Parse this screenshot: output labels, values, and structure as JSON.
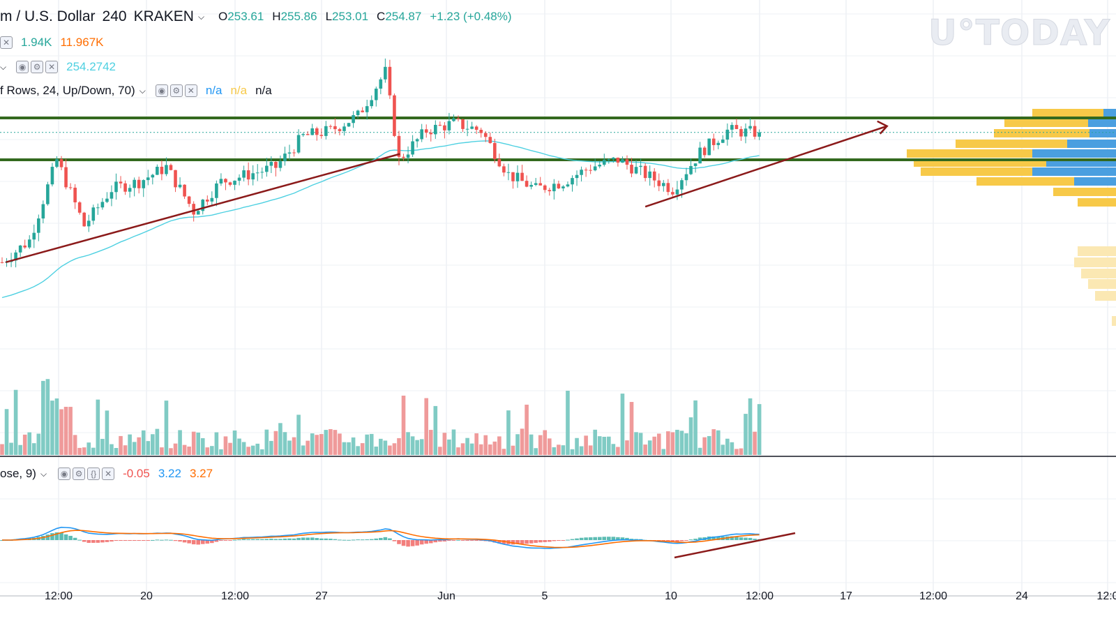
{
  "watermark": "U°TODAY",
  "header": {
    "symbol": "m / U.S. Dollar",
    "interval": "240",
    "exchange": "KRAKEN",
    "o_label": "O",
    "o": "253.61",
    "h_label": "H",
    "h": "255.86",
    "l_label": "L",
    "l": "253.01",
    "c_label": "C",
    "c": "254.87",
    "change": "+1.23 (+0.48%)"
  },
  "volume_legend": {
    "v1": "1.94K",
    "v2": "11.967K"
  },
  "ma_legend": {
    "value": "254.2742"
  },
  "vp_legend": {
    "label": "f Rows, 24, Up/Down, 70)",
    "v1": "n/a",
    "v2": "n/a",
    "v3": "n/a"
  },
  "macd_legend": {
    "label": "ose, 9)",
    "hist": "-0.05",
    "macd": "3.22",
    "signal": "3.27"
  },
  "colors": {
    "up": "#26a69a",
    "down": "#ef5350",
    "ma": "#4dd0e1",
    "macd": "#2196f3",
    "signal": "#ff6d00",
    "level": "#33691e",
    "trend": "#8b1a1a",
    "vp_up": "#f7c948",
    "vp_down": "#4a9fe0"
  },
  "x_axis": {
    "labels": [
      "12:00",
      "20",
      "12:00",
      "27",
      "Jun",
      "5",
      "10",
      "12:00",
      "17",
      "12:00",
      "24",
      "12:0"
    ]
  },
  "chart_data": {
    "type": "candlestick",
    "symbol": "m / U.S. Dollar",
    "exchange": "KRAKEN",
    "interval": "240",
    "price_range": [
      243,
      262
    ],
    "close_points": [
      [
        0,
        246
      ],
      [
        6,
        247.5
      ],
      [
        12,
        253
      ],
      [
        18,
        248.5
      ],
      [
        24,
        251
      ],
      [
        30,
        251.5
      ],
      [
        36,
        252.5
      ],
      [
        42,
        249.5
      ],
      [
        48,
        251.5
      ],
      [
        54,
        252
      ],
      [
        60,
        252.5
      ],
      [
        66,
        254.6
      ],
      [
        72,
        255
      ],
      [
        78,
        256
      ],
      [
        84,
        259
      ],
      [
        87,
        253
      ],
      [
        93,
        255
      ],
      [
        99,
        255.5
      ],
      [
        105,
        255
      ],
      [
        111,
        252
      ],
      [
        117,
        251
      ],
      [
        123,
        251.5
      ],
      [
        129,
        252.5
      ],
      [
        135,
        253
      ],
      [
        141,
        252
      ],
      [
        147,
        251
      ],
      [
        153,
        253.5
      ],
      [
        159,
        255
      ],
      [
        163,
        254.9
      ],
      [
        165,
        254.87
      ]
    ],
    "support_resistance": [
      255.86,
      253.0
    ],
    "trendlines": [
      {
        "name": "support-1",
        "from": [
          0.8,
          246
        ],
        "to": [
          87.2,
          253.4
        ]
      },
      {
        "name": "support-2",
        "from": [
          141,
          249.8
        ],
        "to": [
          194,
          255.3
        ]
      }
    ],
    "moving_average": {
      "last": 254.2742
    },
    "volume": {
      "values_k": [
        1.94,
        11.967
      ]
    },
    "macd": {
      "histogram": -0.05,
      "macd": 3.22,
      "signal": 3.27
    }
  }
}
